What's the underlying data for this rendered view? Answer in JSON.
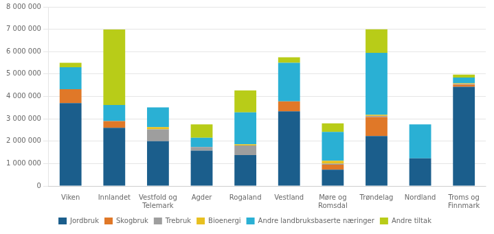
{
  "chart_data": {
    "type": "bar",
    "stacked": true,
    "grid": true,
    "legend": "bottom",
    "categories": [
      "Viken",
      "Innlandet",
      "Vestfold og\nTelemark",
      "Agder",
      "Rogaland",
      "Vestland",
      "Møre og\nRomsdal",
      "Trøndelag",
      "Nordland",
      "Troms og\nFinnmark"
    ],
    "series": [
      {
        "name": "Jordbruk",
        "color": "#1b5e8c",
        "values": [
          3700000,
          2600000,
          2000000,
          1580000,
          1380000,
          3330000,
          730000,
          2230000,
          1230000,
          4430000
        ]
      },
      {
        "name": "Skogbruk",
        "color": "#e07828",
        "values": [
          620000,
          300000,
          0,
          0,
          0,
          450000,
          220000,
          850000,
          0,
          100000
        ]
      },
      {
        "name": "Trebruk",
        "color": "#9e9e9e",
        "values": [
          0,
          0,
          530000,
          160000,
          430000,
          0,
          50000,
          50000,
          0,
          30000
        ]
      },
      {
        "name": "Bioenergi",
        "color": "#e8c020",
        "values": [
          0,
          0,
          100000,
          0,
          50000,
          0,
          130000,
          50000,
          0,
          30000
        ]
      },
      {
        "name": "Andre landbruksbaserte næringer",
        "color": "#2ab0d4",
        "values": [
          980000,
          720000,
          880000,
          410000,
          1430000,
          1720000,
          1280000,
          2770000,
          1520000,
          250000
        ]
      },
      {
        "name": "Andre tiltak",
        "color": "#b8cc18",
        "values": [
          200000,
          3370000,
          0,
          600000,
          980000,
          250000,
          390000,
          1050000,
          0,
          130000
        ]
      }
    ],
    "ylim": [
      0,
      8000000
    ],
    "yticks": [
      0,
      {
        "value": 1000000,
        "label": "1 000 000"
      },
      {
        "value": 2000000,
        "label": "2 000 000"
      },
      {
        "value": 3000000,
        "label": "3 000 000"
      },
      {
        "value": 4000000,
        "label": "4 000 000"
      },
      {
        "value": 5000000,
        "label": "5 000 000"
      },
      {
        "value": 6000000,
        "label": "6 000 000"
      },
      {
        "value": 7000000,
        "label": "7 000 000"
      },
      {
        "value": 8000000,
        "label": "8 000 000"
      }
    ]
  }
}
